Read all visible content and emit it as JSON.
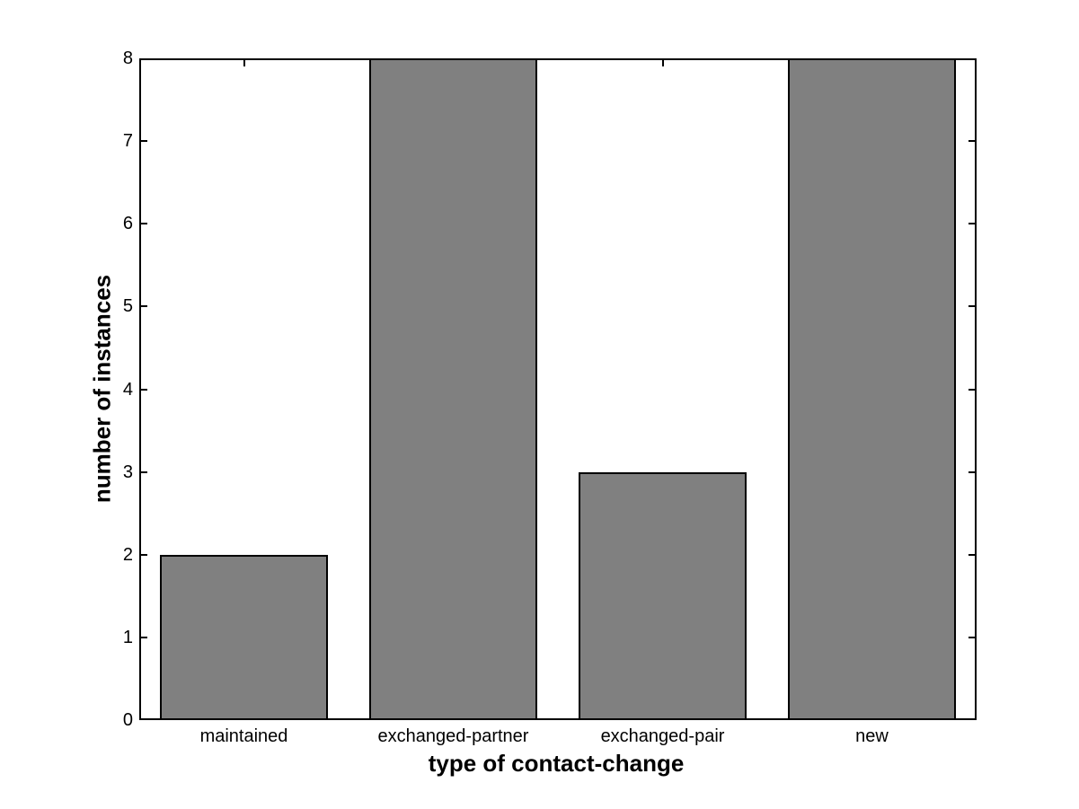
{
  "chart_data": {
    "type": "bar",
    "categories": [
      "maintained",
      "exchanged-partner",
      "exchanged-pair",
      "new"
    ],
    "values": [
      2,
      8,
      3,
      8
    ],
    "xlabel": "type of contact-change",
    "ylabel": "number of instances",
    "ylim": [
      0,
      8
    ],
    "yticks": [
      0,
      1,
      2,
      3,
      4,
      5,
      6,
      7,
      8
    ],
    "bar_width_fraction": 0.8,
    "bar_color": "#808080",
    "bar_edge_color": "#000000",
    "axis_color": "#000000",
    "background": "#ffffff",
    "grid": false,
    "legend_position": "none"
  }
}
